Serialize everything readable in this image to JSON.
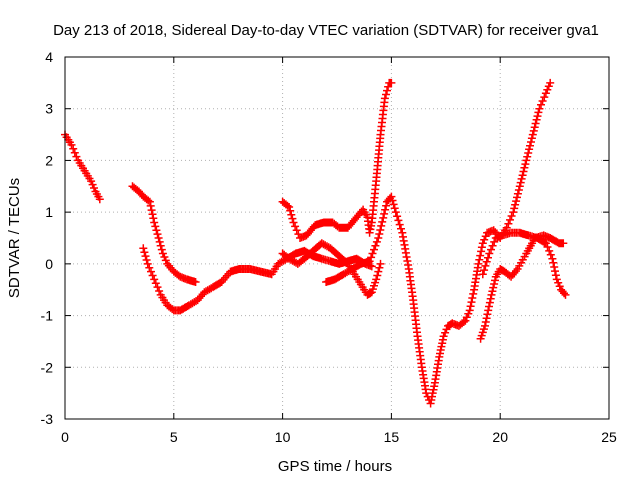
{
  "chart_data": {
    "type": "scatter",
    "title": "Day 213 of 2018, Sidereal Day-to-day VTEC variation (SDTVAR) for receiver gva1",
    "xlabel": "GPS time / hours",
    "ylabel": "SDTVAR / TECUs",
    "xlim": [
      0,
      25
    ],
    "ylim": [
      -3,
      4
    ],
    "xticks": [
      0,
      5,
      10,
      15,
      20,
      25
    ],
    "yticks": [
      -3,
      -2,
      -1,
      0,
      1,
      2,
      3,
      4
    ],
    "grid": true,
    "marker": "+",
    "series_color": "#ff0000",
    "series": [
      {
        "values": [
          [
            0.0,
            2.5
          ],
          [
            0.3,
            2.3
          ],
          [
            0.6,
            2.0
          ],
          [
            0.9,
            1.8
          ],
          [
            1.2,
            1.6
          ],
          [
            1.4,
            1.4
          ],
          [
            1.6,
            1.25
          ]
        ]
      },
      {
        "values": [
          [
            3.1,
            1.5
          ],
          [
            3.4,
            1.4
          ],
          [
            3.6,
            1.3
          ],
          [
            3.9,
            1.2
          ],
          [
            4.1,
            0.8
          ],
          [
            4.3,
            0.5
          ],
          [
            4.5,
            0.2
          ],
          [
            4.7,
            0.0
          ],
          [
            5.0,
            -0.15
          ],
          [
            5.3,
            -0.25
          ],
          [
            5.6,
            -0.3
          ],
          [
            6.0,
            -0.35
          ]
        ]
      },
      {
        "values": [
          [
            3.6,
            0.3
          ],
          [
            3.8,
            0.0
          ],
          [
            4.1,
            -0.3
          ],
          [
            4.4,
            -0.6
          ],
          [
            4.7,
            -0.8
          ],
          [
            5.0,
            -0.9
          ],
          [
            5.3,
            -0.9
          ],
          [
            5.7,
            -0.8
          ],
          [
            6.1,
            -0.7
          ],
          [
            6.4,
            -0.55
          ],
          [
            6.8,
            -0.45
          ],
          [
            7.2,
            -0.35
          ],
          [
            7.6,
            -0.15
          ],
          [
            8.0,
            -0.1
          ],
          [
            8.5,
            -0.1
          ],
          [
            9.0,
            -0.15
          ],
          [
            9.5,
            -0.2
          ],
          [
            9.8,
            0.0
          ],
          [
            10.2,
            0.1
          ],
          [
            10.6,
            0.2
          ],
          [
            11.0,
            0.25
          ],
          [
            11.4,
            0.15
          ],
          [
            11.8,
            0.1
          ],
          [
            12.2,
            0.05
          ],
          [
            12.6,
            0.0
          ],
          [
            13.0,
            0.05
          ],
          [
            13.4,
            0.1
          ],
          [
            13.8,
            0.0
          ],
          [
            14.1,
            -0.05
          ]
        ]
      },
      {
        "values": [
          [
            10.0,
            0.2
          ],
          [
            10.3,
            0.1
          ],
          [
            10.7,
            0.0
          ],
          [
            11.0,
            0.1
          ],
          [
            11.4,
            0.25
          ],
          [
            11.8,
            0.4
          ],
          [
            12.2,
            0.3
          ],
          [
            12.6,
            0.15
          ],
          [
            13.0,
            0.0
          ],
          [
            13.3,
            -0.2
          ],
          [
            13.6,
            -0.4
          ],
          [
            13.9,
            -0.6
          ],
          [
            14.1,
            -0.55
          ],
          [
            14.3,
            -0.3
          ],
          [
            14.5,
            0.0
          ]
        ]
      },
      {
        "values": [
          [
            10.0,
            1.2
          ],
          [
            10.3,
            1.1
          ],
          [
            10.5,
            0.8
          ],
          [
            10.8,
            0.5
          ],
          [
            11.1,
            0.55
          ],
          [
            11.5,
            0.75
          ],
          [
            11.9,
            0.8
          ],
          [
            12.3,
            0.8
          ],
          [
            12.6,
            0.7
          ],
          [
            13.0,
            0.7
          ],
          [
            13.4,
            0.9
          ],
          [
            13.7,
            1.05
          ],
          [
            13.9,
            0.9
          ],
          [
            14.0,
            0.6
          ],
          [
            14.1,
            0.8
          ],
          [
            14.3,
            1.6
          ],
          [
            14.5,
            2.5
          ],
          [
            14.7,
            3.2
          ],
          [
            14.9,
            3.5
          ],
          [
            15.0,
            3.5
          ]
        ]
      },
      {
        "values": [
          [
            12.0,
            -0.35
          ],
          [
            12.4,
            -0.3
          ],
          [
            12.8,
            -0.2
          ],
          [
            13.2,
            -0.1
          ],
          [
            13.6,
            0.0
          ],
          [
            14.0,
            0.05
          ],
          [
            14.4,
            0.5
          ],
          [
            14.8,
            1.2
          ],
          [
            15.0,
            1.3
          ],
          [
            15.2,
            1.0
          ],
          [
            15.5,
            0.6
          ],
          [
            15.8,
            -0.1
          ],
          [
            16.0,
            -0.7
          ],
          [
            16.2,
            -1.4
          ],
          [
            16.4,
            -2.0
          ],
          [
            16.6,
            -2.5
          ],
          [
            16.8,
            -2.7
          ],
          [
            17.0,
            -2.3
          ],
          [
            17.2,
            -1.8
          ],
          [
            17.4,
            -1.4
          ],
          [
            17.6,
            -1.2
          ],
          [
            17.8,
            -1.15
          ],
          [
            18.1,
            -1.2
          ],
          [
            18.4,
            -1.1
          ],
          [
            18.6,
            -0.9
          ],
          [
            18.8,
            -0.5
          ],
          [
            19.0,
            0.0
          ],
          [
            19.2,
            0.4
          ],
          [
            19.4,
            0.6
          ],
          [
            19.7,
            0.65
          ],
          [
            20.0,
            0.5
          ],
          [
            20.3,
            0.7
          ],
          [
            20.6,
            1.0
          ],
          [
            20.9,
            1.5
          ],
          [
            21.2,
            2.0
          ],
          [
            21.5,
            2.5
          ],
          [
            21.8,
            3.0
          ],
          [
            22.1,
            3.3
          ],
          [
            22.3,
            3.5
          ]
        ]
      },
      {
        "values": [
          [
            19.1,
            -1.45
          ],
          [
            19.3,
            -1.2
          ],
          [
            19.6,
            -0.6
          ],
          [
            19.8,
            -0.25
          ],
          [
            20.0,
            -0.1
          ],
          [
            20.2,
            -0.15
          ],
          [
            20.5,
            -0.25
          ],
          [
            20.8,
            -0.1
          ],
          [
            21.2,
            0.2
          ],
          [
            21.6,
            0.5
          ],
          [
            22.0,
            0.55
          ],
          [
            22.3,
            0.5
          ],
          [
            22.5,
            0.45
          ],
          [
            22.7,
            0.4
          ],
          [
            22.9,
            0.4
          ]
        ]
      },
      {
        "values": [
          [
            19.2,
            -0.2
          ],
          [
            19.5,
            0.2
          ],
          [
            19.8,
            0.5
          ],
          [
            20.1,
            0.55
          ],
          [
            20.5,
            0.6
          ],
          [
            20.9,
            0.6
          ],
          [
            21.3,
            0.55
          ],
          [
            21.7,
            0.5
          ],
          [
            22.1,
            0.4
          ],
          [
            22.4,
            0.1
          ],
          [
            22.6,
            -0.3
          ],
          [
            22.8,
            -0.5
          ],
          [
            23.0,
            -0.6
          ]
        ]
      }
    ]
  }
}
